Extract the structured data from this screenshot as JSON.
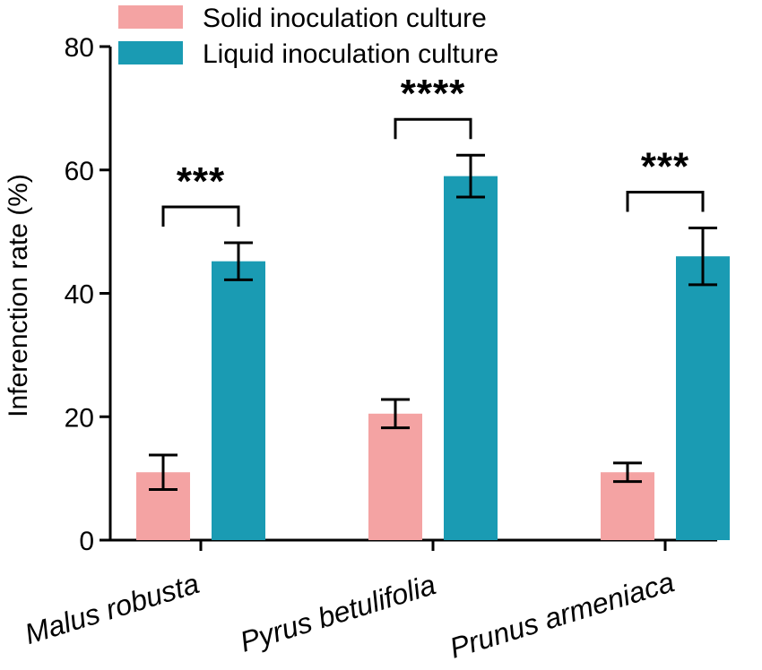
{
  "chart_data": {
    "type": "bar",
    "title": "",
    "xlabel": "",
    "ylabel": "Inferenction rate (%)",
    "ylim": [
      0,
      80
    ],
    "yticks": [
      0,
      20,
      40,
      60,
      80
    ],
    "categories": [
      "Malus robusta",
      "Pyrus betulifolia",
      "Prunus armeniaca"
    ],
    "series": [
      {
        "name": "Solid inoculation culture",
        "color": "#f4a3a3",
        "values": [
          11.0,
          20.5,
          11.0
        ],
        "errors": [
          2.8,
          2.3,
          1.5
        ]
      },
      {
        "name": "Liquid inoculation culture",
        "color": "#1a9bb3",
        "values": [
          45.2,
          59.0,
          46.0
        ],
        "errors": [
          3.0,
          3.4,
          4.6
        ]
      }
    ],
    "significance": [
      "***",
      "****",
      "***"
    ],
    "legend_position": "top"
  }
}
